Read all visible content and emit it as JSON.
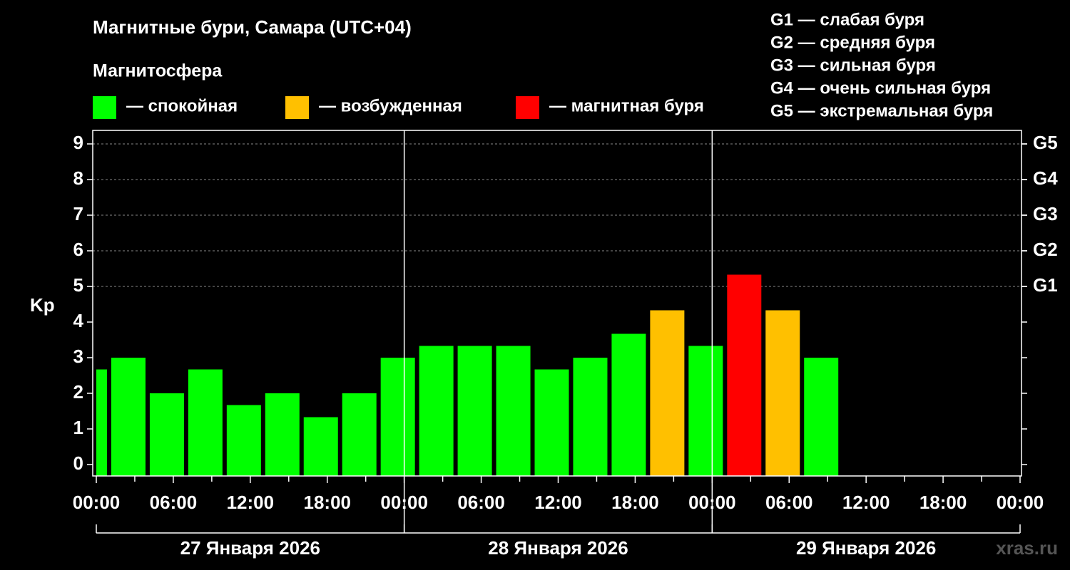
{
  "chart_data": {
    "type": "bar",
    "title": "Магнитные бури, Самара (UTC+04)",
    "ylabel": "Kp",
    "watermark": "xras.ru",
    "legend": {
      "title": "Магнитосфера",
      "items": [
        {
          "label": "— спокойная",
          "color": "#00ff00"
        },
        {
          "label": "— возбужденная",
          "color": "#ffc000"
        },
        {
          "label": "— магнитная буря",
          "color": "#ff0000"
        }
      ]
    },
    "g_scale": [
      "G1 — слабая буря",
      "G2 — средняя буря",
      "G3 — сильная буря",
      "G4 — очень сильная буря",
      "G5 — экстремальная буря"
    ],
    "x": [
      -0.5,
      2.5,
      5.5,
      8.5,
      11.5,
      14.5,
      17.5,
      20.5,
      23.5,
      26.5,
      29.5,
      32.5,
      35.5,
      38.5,
      41.5,
      44.5,
      47.5,
      50.5,
      53.5,
      56.5
    ],
    "values": [
      2.67,
      3,
      2,
      2.67,
      1.67,
      2,
      1.33,
      2,
      3,
      3.33,
      3.33,
      3.33,
      2.67,
      3,
      3.67,
      4.33,
      3.33,
      5.33,
      4.33,
      3
    ],
    "colors": [
      "#00ff00",
      "#00ff00",
      "#00ff00",
      "#00ff00",
      "#00ff00",
      "#00ff00",
      "#00ff00",
      "#00ff00",
      "#00ff00",
      "#00ff00",
      "#00ff00",
      "#00ff00",
      "#00ff00",
      "#00ff00",
      "#00ff00",
      "#ffc000",
      "#00ff00",
      "#ff0000",
      "#ffc000",
      "#00ff00"
    ],
    "xlim": [
      0,
      72
    ],
    "xticks": [
      {
        "value": 0,
        "label": "00:00"
      },
      {
        "value": 6,
        "label": "06:00"
      },
      {
        "value": 12,
        "label": "12:00"
      },
      {
        "value": 18,
        "label": "18:00"
      },
      {
        "value": 24,
        "label": "00:00"
      },
      {
        "value": 30,
        "label": "06:00"
      },
      {
        "value": 36,
        "label": "12:00"
      },
      {
        "value": 42,
        "label": "18:00"
      },
      {
        "value": 48,
        "label": "00:00"
      },
      {
        "value": 54,
        "label": "06:00"
      },
      {
        "value": 60,
        "label": "12:00"
      },
      {
        "value": 66,
        "label": "18:00"
      },
      {
        "value": 72,
        "label": "00:00"
      }
    ],
    "days": [
      "27 Января 2026",
      "28 Января 2026",
      "29 Января 2026"
    ],
    "ylim": [
      -0.32,
      9.38
    ],
    "yticks": [
      0,
      1,
      2,
      3,
      4,
      5,
      6,
      7,
      8,
      9
    ],
    "y2ticks": [
      {
        "value": 5,
        "label": "G1"
      },
      {
        "value": 6,
        "label": "G2"
      },
      {
        "value": 7,
        "label": "G3"
      },
      {
        "value": 8,
        "label": "G4"
      },
      {
        "value": 9,
        "label": "G5"
      }
    ],
    "grid": true
  }
}
